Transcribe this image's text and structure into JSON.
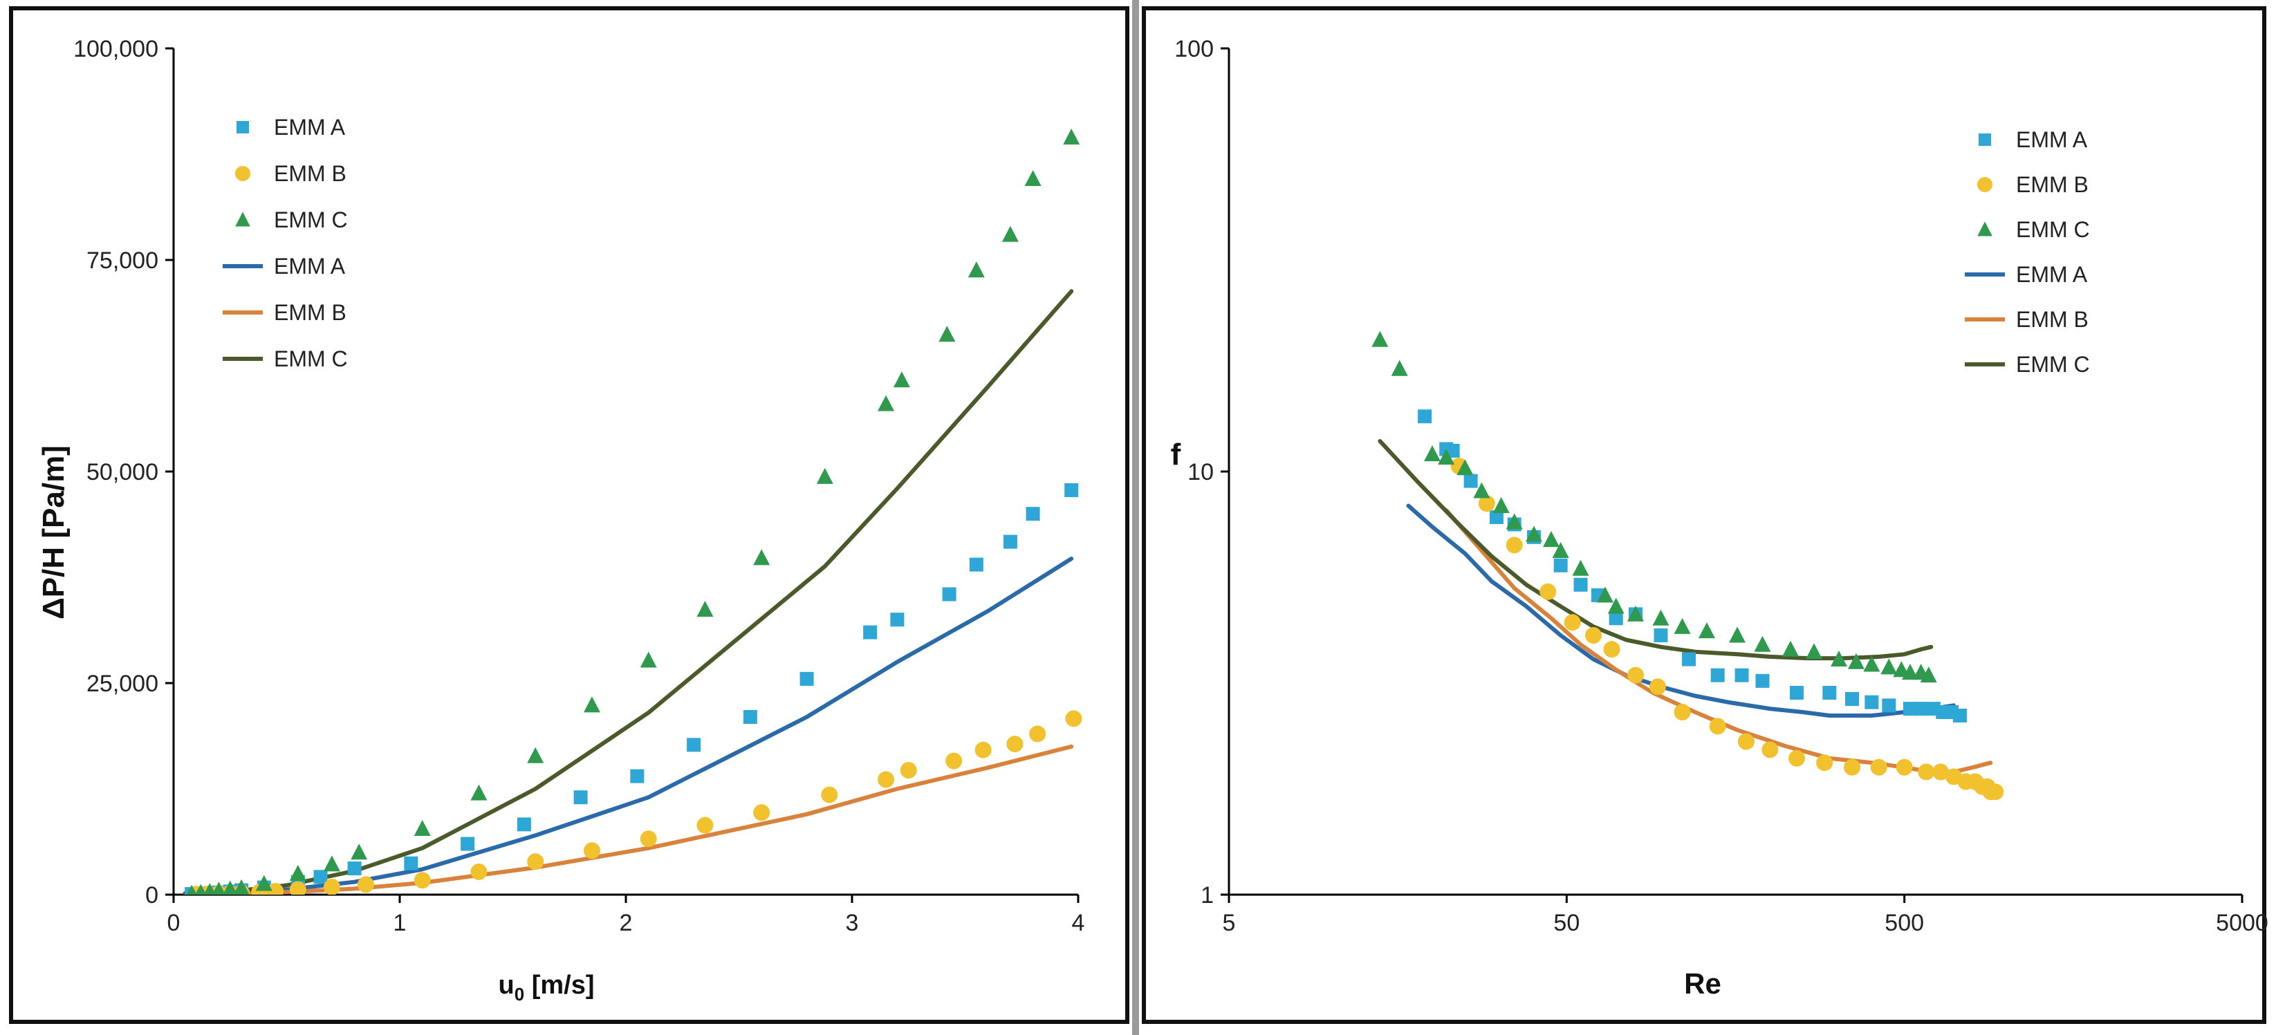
{
  "chart_data": [
    {
      "type": "scatter",
      "xlabel": "u",
      "xlabel_sub": "0",
      "xlabel_unit": "[m/s]",
      "ylabel": "ΔP/H  [Pa/m]",
      "x_scale": "linear",
      "y_scale": "linear",
      "xlim": [
        0,
        4
      ],
      "ylim": [
        0,
        100000
      ],
      "x_ticks": [
        0,
        1,
        2,
        3,
        4
      ],
      "x_tick_labels": [
        "0",
        "1",
        "2",
        "3",
        "4"
      ],
      "y_ticks": [
        0,
        25000,
        50000,
        75000,
        100000
      ],
      "y_tick_labels": [
        "0",
        "25,000",
        "50,000",
        "75,000",
        "100,000"
      ],
      "legend_position": "top-left",
      "series": [
        {
          "name": "EMM A",
          "kind": "markers",
          "marker": "square",
          "color": "#2ea6d6",
          "x": [
            0.08,
            0.12,
            0.16,
            0.2,
            0.25,
            0.3,
            0.4,
            0.55,
            0.65,
            0.8,
            1.05,
            1.3,
            1.55,
            1.8,
            2.05,
            2.3,
            2.55,
            2.8,
            3.08,
            3.2,
            3.43,
            3.55,
            3.7,
            3.8,
            3.97
          ],
          "y": [
            80,
            120,
            180,
            260,
            380,
            520,
            850,
            1500,
            2100,
            3100,
            3700,
            6000,
            8300,
            11500,
            14000,
            17700,
            21000,
            25500,
            31000,
            32500,
            35500,
            39000,
            41700,
            45000,
            47800
          ]
        },
        {
          "name": "EMM B",
          "kind": "markers",
          "marker": "circle",
          "color": "#f2c12e",
          "x": [
            0.1,
            0.15,
            0.2,
            0.25,
            0.3,
            0.38,
            0.45,
            0.55,
            0.7,
            0.85,
            1.1,
            1.35,
            1.6,
            1.85,
            2.1,
            2.35,
            2.6,
            2.9,
            3.15,
            3.25,
            3.45,
            3.58,
            3.72,
            3.82,
            3.98
          ],
          "y": [
            60,
            90,
            130,
            170,
            220,
            300,
            400,
            600,
            900,
            1200,
            1700,
            2700,
            3900,
            5200,
            6600,
            8200,
            9700,
            11800,
            13600,
            14700,
            15800,
            17100,
            17800,
            19000,
            20800
          ]
        },
        {
          "name": "EMM C",
          "kind": "markers",
          "marker": "triangle",
          "color": "#2f9a4e",
          "x": [
            0.08,
            0.12,
            0.16,
            0.2,
            0.25,
            0.3,
            0.4,
            0.55,
            0.7,
            0.82,
            1.1,
            1.35,
            1.6,
            1.85,
            2.1,
            2.35,
            2.6,
            2.88,
            3.15,
            3.22,
            3.42,
            3.55,
            3.7,
            3.8,
            3.97
          ],
          "y": [
            150,
            250,
            350,
            500,
            650,
            800,
            1300,
            2500,
            3600,
            5000,
            7800,
            12000,
            16400,
            22400,
            27700,
            33700,
            39800,
            49400,
            58000,
            60800,
            66200,
            73800,
            78000,
            84600,
            89500
          ]
        },
        {
          "name": "EMM A",
          "kind": "line",
          "color": "#2a6aa8",
          "x": [
            0.05,
            0.3,
            0.5,
            0.8,
            1.1,
            1.6,
            2.1,
            2.8,
            3.2,
            3.6,
            3.97
          ],
          "y": [
            100,
            300,
            600,
            1500,
            3000,
            7000,
            11500,
            21000,
            27500,
            33500,
            39700
          ]
        },
        {
          "name": "EMM B",
          "kind": "line",
          "color": "#d9823b",
          "x": [
            0.05,
            0.3,
            0.5,
            0.8,
            1.1,
            1.6,
            2.1,
            2.8,
            3.2,
            3.6,
            3.97
          ],
          "y": [
            50,
            150,
            300,
            700,
            1400,
            3200,
            5500,
            9500,
            12500,
            15000,
            17500
          ]
        },
        {
          "name": "EMM C",
          "kind": "line",
          "color": "#4b5a2a",
          "x": [
            0.05,
            0.3,
            0.5,
            0.8,
            1.1,
            1.6,
            2.1,
            2.88,
            3.2,
            3.6,
            3.97
          ],
          "y": [
            150,
            500,
            1100,
            2800,
            5500,
            12500,
            21500,
            38800,
            48000,
            60000,
            71300
          ]
        }
      ]
    },
    {
      "type": "scatter",
      "xlabel": "Re",
      "ylabel": "f",
      "x_scale": "log",
      "y_scale": "log",
      "xlim": [
        5,
        5000
      ],
      "ylim": [
        1,
        100
      ],
      "x_ticks": [
        5,
        50,
        500,
        5000
      ],
      "x_tick_labels": [
        "5",
        "50",
        "500",
        "5000"
      ],
      "y_ticks": [
        1,
        10,
        100
      ],
      "y_tick_labels": [
        "1",
        "10",
        "100"
      ],
      "legend_position": "top-right",
      "series": [
        {
          "name": "EMM A",
          "kind": "markers",
          "marker": "square",
          "color": "#2ea6d6",
          "x": [
            19,
            22,
            23,
            26,
            31,
            35,
            40,
            48,
            55,
            62,
            70,
            80,
            95,
            115,
            140,
            165,
            190,
            240,
            300,
            350,
            400,
            450,
            520,
            560,
            610,
            650,
            690,
            730
          ],
          "y": [
            13.5,
            11.3,
            11.2,
            9.5,
            7.8,
            7.5,
            7,
            6,
            5.4,
            5.1,
            4.5,
            4.6,
            4.1,
            3.6,
            3.3,
            3.3,
            3.2,
            3,
            3,
            2.9,
            2.85,
            2.8,
            2.75,
            2.75,
            2.75,
            2.7,
            2.7,
            2.65
          ]
        },
        {
          "name": "EMM B",
          "kind": "markers",
          "marker": "circle",
          "color": "#f2c12e",
          "x": [
            24,
            29,
            35,
            44,
            52,
            60,
            68,
            80,
            93,
            110,
            140,
            170,
            200,
            240,
            290,
            350,
            420,
            500,
            580,
            640,
            700,
            760,
            810,
            850,
            880,
            900,
            930
          ],
          "y": [
            10.3,
            8.4,
            6.7,
            5.2,
            4.4,
            4.1,
            3.8,
            3.3,
            3.1,
            2.7,
            2.5,
            2.3,
            2.2,
            2.1,
            2.05,
            2.0,
            2.0,
            2.0,
            1.95,
            1.95,
            1.9,
            1.85,
            1.85,
            1.8,
            1.8,
            1.75,
            1.75
          ]
        },
        {
          "name": "EMM C",
          "kind": "markers",
          "marker": "triangle",
          "color": "#2f9a4e",
          "x": [
            14,
            16,
            20,
            22,
            25,
            28,
            32,
            35,
            40,
            45,
            48,
            55,
            65,
            70,
            80,
            95,
            110,
            130,
            160,
            190,
            230,
            270,
            320,
            360,
            400,
            450,
            490,
            520,
            560,
            590
          ],
          "y": [
            20.5,
            17.5,
            11,
            10.8,
            10.2,
            9,
            8.3,
            7.6,
            7.1,
            6.9,
            6.5,
            5.9,
            5.1,
            4.8,
            4.6,
            4.5,
            4.3,
            4.2,
            4.1,
            3.9,
            3.8,
            3.75,
            3.6,
            3.55,
            3.5,
            3.45,
            3.4,
            3.35,
            3.35,
            3.3
          ]
        },
        {
          "name": "EMM A",
          "kind": "line",
          "color": "#2a6aa8",
          "x": [
            17,
            20,
            25,
            30,
            38,
            48,
            60,
            75,
            95,
            120,
            150,
            200,
            250,
            300,
            400,
            500,
            600,
            700
          ],
          "y": [
            8.3,
            7.4,
            6.4,
            5.5,
            4.8,
            4.1,
            3.6,
            3.3,
            3.1,
            2.95,
            2.85,
            2.75,
            2.7,
            2.65,
            2.65,
            2.7,
            2.75,
            2.8
          ]
        },
        {
          "name": "EMM B",
          "kind": "line",
          "color": "#d9823b",
          "x": [
            22,
            28,
            35,
            45,
            55,
            70,
            90,
            120,
            160,
            220,
            300,
            400,
            500,
            600,
            700,
            800,
            900
          ],
          "y": [
            8.1,
            6.5,
            5.3,
            4.5,
            3.9,
            3.4,
            3.0,
            2.7,
            2.45,
            2.25,
            2.1,
            2.05,
            2.0,
            1.95,
            1.95,
            2.0,
            2.05
          ]
        },
        {
          "name": "EMM C",
          "kind": "line",
          "color": "#4b5a2a",
          "x": [
            14,
            18,
            24,
            30,
            38,
            48,
            60,
            75,
            95,
            120,
            160,
            200,
            260,
            330,
            420,
            500,
            560,
            600
          ],
          "y": [
            11.8,
            9.5,
            7.5,
            6.3,
            5.4,
            4.8,
            4.3,
            4.0,
            3.85,
            3.75,
            3.7,
            3.65,
            3.62,
            3.62,
            3.65,
            3.7,
            3.8,
            3.85
          ]
        }
      ]
    }
  ],
  "colors": {
    "divider": "#9a9a9a",
    "border": "#111111"
  }
}
